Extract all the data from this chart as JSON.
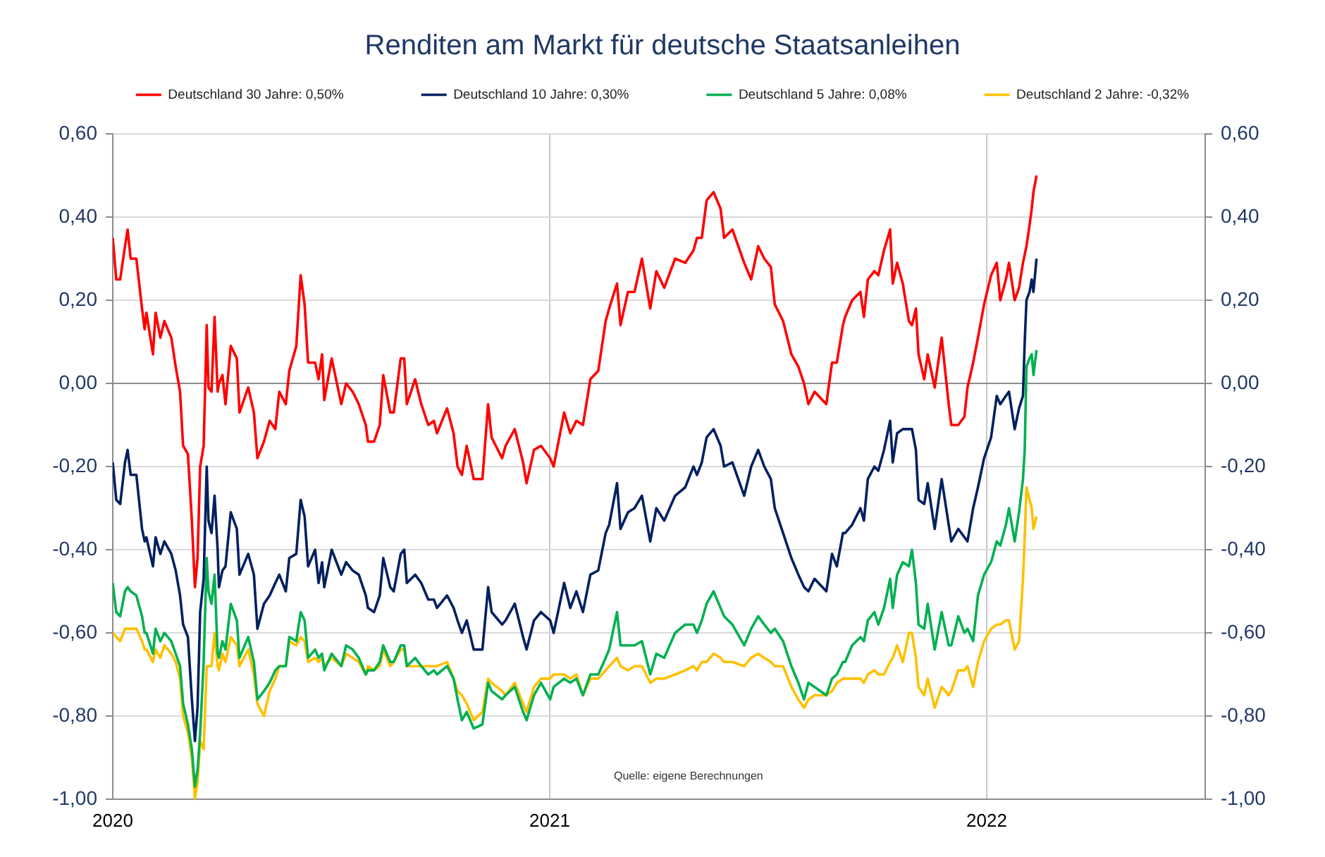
{
  "chart_data": {
    "type": "line",
    "title": "Renditen am Markt für deutsche Staatsanleihen",
    "annotations": [
      "Quelle: eigene Berechnungen"
    ],
    "x": [
      2020.0,
      2020.008,
      2020.017,
      2020.028,
      2020.034,
      2020.041,
      2020.054,
      2020.067,
      2020.073,
      2020.077,
      2020.092,
      2020.098,
      2020.109,
      2020.118,
      2020.134,
      2020.144,
      2020.154,
      2020.161,
      2020.172,
      2020.181,
      2020.188,
      2020.194,
      2020.2,
      2020.208,
      2020.215,
      2020.219,
      2020.226,
      2020.233,
      2020.24,
      2020.243,
      2020.251,
      2020.258,
      2020.27,
      2020.284,
      2020.29,
      2020.31,
      2020.323,
      2020.331,
      2020.346,
      2020.359,
      2020.372,
      2020.381,
      2020.396,
      2020.404,
      2020.42,
      2020.43,
      2020.439,
      2020.447,
      2020.463,
      2020.471,
      2020.479,
      2020.484,
      2020.501,
      2020.523,
      2020.534,
      2020.549,
      2020.563,
      2020.579,
      2020.584,
      2020.598,
      2020.611,
      2020.619,
      2020.635,
      2020.643,
      2020.659,
      2020.667,
      2020.673,
      2020.692,
      2020.706,
      2020.722,
      2020.735,
      2020.742,
      2020.765,
      2020.78,
      2020.789,
      2020.799,
      2020.81,
      2020.826,
      2020.846,
      2020.859,
      2020.867,
      2020.891,
      2020.899,
      2020.92,
      2020.939,
      2020.947,
      2020.964,
      2020.98,
      2021.001,
      2021.009,
      2021.033,
      2021.047,
      2021.061,
      2021.076,
      2021.093,
      2021.111,
      2021.128,
      2021.136,
      2021.154,
      2021.162,
      2021.179,
      2021.194,
      2021.211,
      2021.23,
      2021.244,
      2021.262,
      2021.287,
      2021.31,
      2021.329,
      2021.337,
      2021.348,
      2021.359,
      2021.375,
      2021.391,
      2021.399,
      2021.418,
      2021.445,
      2021.461,
      2021.477,
      2021.491,
      2021.506,
      2021.515,
      2021.534,
      2021.553,
      2021.569,
      2021.582,
      2021.592,
      2021.606,
      2021.633,
      2021.646,
      2021.657,
      2021.671,
      2021.676,
      2021.692,
      2021.711,
      2021.719,
      2021.728,
      2021.743,
      2021.752,
      2021.765,
      2021.779,
      2021.785,
      2021.795,
      2021.808,
      2021.822,
      2021.829,
      2021.838,
      2021.844,
      2021.857,
      2021.865,
      2021.881,
      2021.897,
      2021.913,
      2021.919,
      2021.935,
      2021.949,
      2021.956,
      2021.969,
      2021.98,
      2021.994,
      2022.01,
      2022.023,
      2022.031,
      2022.044,
      2022.051,
      2022.064,
      2022.074,
      2022.083,
      2022.087,
      2022.091,
      2022.098,
      2022.103,
      2022.107,
      2022.114
    ],
    "series": [
      {
        "name": "Deutschland 30 Jahre: 0,50%",
        "color": "#ff0000",
        "values": [
          0.35,
          0.25,
          0.25,
          0.33,
          0.37,
          0.3,
          0.3,
          0.18,
          0.13,
          0.17,
          0.07,
          0.17,
          0.11,
          0.15,
          0.11,
          0.04,
          -0.02,
          -0.15,
          -0.17,
          -0.33,
          -0.49,
          -0.42,
          -0.2,
          -0.15,
          0.14,
          -0.01,
          -0.02,
          0.16,
          -0.02,
          0.0,
          0.02,
          -0.05,
          0.09,
          0.06,
          -0.07,
          -0.01,
          -0.07,
          -0.18,
          -0.14,
          -0.09,
          -0.11,
          -0.02,
          -0.05,
          0.03,
          0.09,
          0.26,
          0.19,
          0.05,
          0.05,
          0.01,
          0.07,
          -0.04,
          0.06,
          -0.05,
          0.0,
          -0.02,
          -0.05,
          -0.1,
          -0.14,
          -0.14,
          -0.1,
          0.02,
          -0.07,
          -0.07,
          0.06,
          0.06,
          -0.05,
          0.01,
          -0.05,
          -0.1,
          -0.09,
          -0.12,
          -0.06,
          -0.12,
          -0.2,
          -0.22,
          -0.15,
          -0.23,
          -0.23,
          -0.05,
          -0.13,
          -0.18,
          -0.15,
          -0.11,
          -0.19,
          -0.24,
          -0.16,
          -0.15,
          -0.18,
          -0.2,
          -0.07,
          -0.12,
          -0.09,
          -0.1,
          0.01,
          0.03,
          0.15,
          0.18,
          0.24,
          0.14,
          0.22,
          0.22,
          0.3,
          0.18,
          0.27,
          0.23,
          0.3,
          0.29,
          0.32,
          0.35,
          0.35,
          0.44,
          0.46,
          0.42,
          0.35,
          0.37,
          0.29,
          0.25,
          0.33,
          0.3,
          0.28,
          0.19,
          0.15,
          0.07,
          0.04,
          0.0,
          -0.05,
          -0.02,
          -0.05,
          0.05,
          0.05,
          0.14,
          0.16,
          0.2,
          0.22,
          0.16,
          0.25,
          0.27,
          0.26,
          0.32,
          0.37,
          0.24,
          0.29,
          0.24,
          0.15,
          0.14,
          0.18,
          0.07,
          0.01,
          0.07,
          -0.01,
          0.11,
          -0.05,
          -0.1,
          -0.1,
          -0.08,
          -0.01,
          0.05,
          0.11,
          0.19,
          0.26,
          0.29,
          0.2,
          0.25,
          0.29,
          0.2,
          0.23,
          0.29,
          0.31,
          0.33,
          0.38,
          0.42,
          0.46,
          0.5
        ]
      },
      {
        "name": "Deutschland 10 Jahre: 0,30%",
        "color": "#002060",
        "values": [
          -0.19,
          -0.28,
          -0.29,
          -0.19,
          -0.16,
          -0.22,
          -0.22,
          -0.35,
          -0.38,
          -0.37,
          -0.44,
          -0.37,
          -0.41,
          -0.38,
          -0.41,
          -0.45,
          -0.51,
          -0.58,
          -0.61,
          -0.76,
          -0.86,
          -0.78,
          -0.55,
          -0.47,
          -0.2,
          -0.33,
          -0.36,
          -0.27,
          -0.4,
          -0.49,
          -0.45,
          -0.44,
          -0.31,
          -0.35,
          -0.46,
          -0.41,
          -0.46,
          -0.59,
          -0.53,
          -0.51,
          -0.48,
          -0.46,
          -0.5,
          -0.42,
          -0.41,
          -0.28,
          -0.32,
          -0.44,
          -0.4,
          -0.48,
          -0.43,
          -0.49,
          -0.4,
          -0.46,
          -0.43,
          -0.45,
          -0.46,
          -0.51,
          -0.54,
          -0.55,
          -0.51,
          -0.42,
          -0.49,
          -0.5,
          -0.41,
          -0.4,
          -0.48,
          -0.46,
          -0.48,
          -0.52,
          -0.52,
          -0.54,
          -0.51,
          -0.54,
          -0.57,
          -0.6,
          -0.57,
          -0.64,
          -0.64,
          -0.49,
          -0.55,
          -0.58,
          -0.57,
          -0.53,
          -0.61,
          -0.64,
          -0.57,
          -0.55,
          -0.57,
          -0.6,
          -0.48,
          -0.54,
          -0.5,
          -0.55,
          -0.46,
          -0.45,
          -0.36,
          -0.34,
          -0.24,
          -0.35,
          -0.31,
          -0.3,
          -0.27,
          -0.38,
          -0.3,
          -0.33,
          -0.27,
          -0.25,
          -0.2,
          -0.22,
          -0.19,
          -0.13,
          -0.11,
          -0.15,
          -0.2,
          -0.19,
          -0.27,
          -0.2,
          -0.16,
          -0.2,
          -0.23,
          -0.3,
          -0.36,
          -0.42,
          -0.46,
          -0.49,
          -0.5,
          -0.47,
          -0.5,
          -0.41,
          -0.44,
          -0.36,
          -0.36,
          -0.34,
          -0.3,
          -0.33,
          -0.23,
          -0.2,
          -0.21,
          -0.16,
          -0.09,
          -0.19,
          -0.12,
          -0.11,
          -0.11,
          -0.11,
          -0.16,
          -0.28,
          -0.29,
          -0.24,
          -0.35,
          -0.23,
          -0.34,
          -0.38,
          -0.35,
          -0.37,
          -0.38,
          -0.3,
          -0.25,
          -0.18,
          -0.13,
          -0.03,
          -0.05,
          -0.03,
          -0.02,
          -0.11,
          -0.06,
          -0.03,
          0.1,
          0.2,
          0.22,
          0.25,
          0.22,
          0.3
        ]
      },
      {
        "name": "Deutschland 5 Jahre: 0,08%",
        "color": "#00b050",
        "values": [
          -0.48,
          -0.55,
          -0.56,
          -0.5,
          -0.49,
          -0.5,
          -0.51,
          -0.56,
          -0.6,
          -0.6,
          -0.65,
          -0.59,
          -0.62,
          -0.6,
          -0.62,
          -0.65,
          -0.68,
          -0.77,
          -0.82,
          -0.88,
          -0.97,
          -0.93,
          -0.84,
          -0.67,
          -0.42,
          -0.5,
          -0.53,
          -0.46,
          -0.65,
          -0.66,
          -0.62,
          -0.64,
          -0.53,
          -0.57,
          -0.66,
          -0.61,
          -0.67,
          -0.76,
          -0.74,
          -0.72,
          -0.69,
          -0.68,
          -0.68,
          -0.61,
          -0.62,
          -0.55,
          -0.57,
          -0.66,
          -0.64,
          -0.66,
          -0.65,
          -0.69,
          -0.65,
          -0.68,
          -0.63,
          -0.64,
          -0.66,
          -0.7,
          -0.69,
          -0.69,
          -0.67,
          -0.63,
          -0.67,
          -0.67,
          -0.63,
          -0.63,
          -0.68,
          -0.66,
          -0.68,
          -0.7,
          -0.69,
          -0.7,
          -0.68,
          -0.71,
          -0.76,
          -0.81,
          -0.79,
          -0.83,
          -0.82,
          -0.72,
          -0.74,
          -0.76,
          -0.75,
          -0.73,
          -0.79,
          -0.81,
          -0.75,
          -0.72,
          -0.76,
          -0.73,
          -0.71,
          -0.72,
          -0.71,
          -0.75,
          -0.7,
          -0.7,
          -0.66,
          -0.64,
          -0.55,
          -0.63,
          -0.63,
          -0.63,
          -0.62,
          -0.7,
          -0.65,
          -0.66,
          -0.6,
          -0.58,
          -0.58,
          -0.6,
          -0.57,
          -0.53,
          -0.5,
          -0.54,
          -0.56,
          -0.58,
          -0.63,
          -0.59,
          -0.56,
          -0.58,
          -0.6,
          -0.59,
          -0.62,
          -0.68,
          -0.72,
          -0.76,
          -0.72,
          -0.73,
          -0.75,
          -0.71,
          -0.7,
          -0.67,
          -0.67,
          -0.63,
          -0.61,
          -0.62,
          -0.57,
          -0.55,
          -0.58,
          -0.54,
          -0.47,
          -0.54,
          -0.46,
          -0.43,
          -0.44,
          -0.4,
          -0.48,
          -0.58,
          -0.59,
          -0.53,
          -0.64,
          -0.55,
          -0.63,
          -0.63,
          -0.56,
          -0.6,
          -0.59,
          -0.62,
          -0.51,
          -0.46,
          -0.43,
          -0.38,
          -0.39,
          -0.34,
          -0.3,
          -0.38,
          -0.31,
          -0.23,
          -0.16,
          0.04,
          0.06,
          0.07,
          0.02,
          0.08
        ]
      },
      {
        "name": "Deutschland 2 Jahre: -0,32%",
        "color": "#ffc000",
        "values": [
          -0.6,
          -0.61,
          -0.62,
          -0.59,
          -0.59,
          -0.59,
          -0.59,
          -0.62,
          -0.64,
          -0.64,
          -0.67,
          -0.64,
          -0.66,
          -0.63,
          -0.65,
          -0.67,
          -0.71,
          -0.8,
          -0.84,
          -0.9,
          -1.0,
          -0.96,
          -0.86,
          -0.88,
          -0.68,
          -0.68,
          -0.68,
          -0.6,
          -0.68,
          -0.69,
          -0.65,
          -0.67,
          -0.61,
          -0.63,
          -0.68,
          -0.64,
          -0.7,
          -0.77,
          -0.8,
          -0.74,
          -0.71,
          -0.68,
          -0.68,
          -0.62,
          -0.63,
          -0.61,
          -0.62,
          -0.67,
          -0.66,
          -0.67,
          -0.66,
          -0.68,
          -0.66,
          -0.68,
          -0.65,
          -0.66,
          -0.67,
          -0.7,
          -0.68,
          -0.69,
          -0.68,
          -0.64,
          -0.68,
          -0.67,
          -0.64,
          -0.64,
          -0.68,
          -0.68,
          -0.68,
          -0.68,
          -0.68,
          -0.68,
          -0.67,
          -0.71,
          -0.74,
          -0.75,
          -0.77,
          -0.81,
          -0.79,
          -0.71,
          -0.72,
          -0.74,
          -0.75,
          -0.72,
          -0.77,
          -0.79,
          -0.73,
          -0.71,
          -0.71,
          -0.7,
          -0.7,
          -0.71,
          -0.7,
          -0.75,
          -0.71,
          -0.71,
          -0.69,
          -0.68,
          -0.66,
          -0.68,
          -0.69,
          -0.68,
          -0.68,
          -0.72,
          -0.71,
          -0.71,
          -0.7,
          -0.69,
          -0.68,
          -0.69,
          -0.67,
          -0.67,
          -0.65,
          -0.66,
          -0.67,
          -0.67,
          -0.68,
          -0.66,
          -0.65,
          -0.66,
          -0.67,
          -0.68,
          -0.68,
          -0.73,
          -0.76,
          -0.78,
          -0.76,
          -0.75,
          -0.75,
          -0.74,
          -0.72,
          -0.71,
          -0.71,
          -0.71,
          -0.71,
          -0.72,
          -0.7,
          -0.69,
          -0.7,
          -0.7,
          -0.67,
          -0.66,
          -0.63,
          -0.67,
          -0.6,
          -0.6,
          -0.66,
          -0.73,
          -0.75,
          -0.71,
          -0.78,
          -0.73,
          -0.75,
          -0.74,
          -0.69,
          -0.69,
          -0.68,
          -0.73,
          -0.67,
          -0.62,
          -0.59,
          -0.58,
          -0.58,
          -0.57,
          -0.57,
          -0.64,
          -0.62,
          -0.47,
          -0.37,
          -0.25,
          -0.28,
          -0.3,
          -0.35,
          -0.32
        ]
      }
    ],
    "xlim": [
      2020,
      2022.5
    ],
    "xticks": [
      2020,
      2021,
      2022
    ],
    "ylim": [
      -1,
      0.6
    ],
    "yticks": [
      {
        "value": -1,
        "label": "-1,00"
      },
      {
        "value": -0.8,
        "label": "-0,80"
      },
      {
        "value": -0.6,
        "label": "-0,60"
      },
      {
        "value": -0.4,
        "label": "-0,40"
      },
      {
        "value": -0.2,
        "label": "-0,20"
      },
      {
        "value": 0,
        "label": "0,00"
      },
      {
        "value": 0.2,
        "label": "0,20"
      },
      {
        "value": 0.4,
        "label": "0,40"
      },
      {
        "value": 0.6,
        "label": "0,60"
      }
    ],
    "y2lim": [
      -1,
      0.6
    ],
    "y2ticks": [
      {
        "value": -1,
        "label": "-1,00"
      },
      {
        "value": -0.8,
        "label": "-0,80"
      },
      {
        "value": -0.6,
        "label": "-0,60"
      },
      {
        "value": -0.4,
        "label": "-0,40"
      },
      {
        "value": -0.2,
        "label": "-0,20"
      },
      {
        "value": 0,
        "label": "0,00"
      },
      {
        "value": 0.2,
        "label": "0,20"
      },
      {
        "value": 0.4,
        "label": "0,40"
      },
      {
        "value": 0.6,
        "label": "0,60"
      }
    ],
    "grid": true,
    "legend": "top",
    "marker": "none",
    "line_style": "solid"
  }
}
